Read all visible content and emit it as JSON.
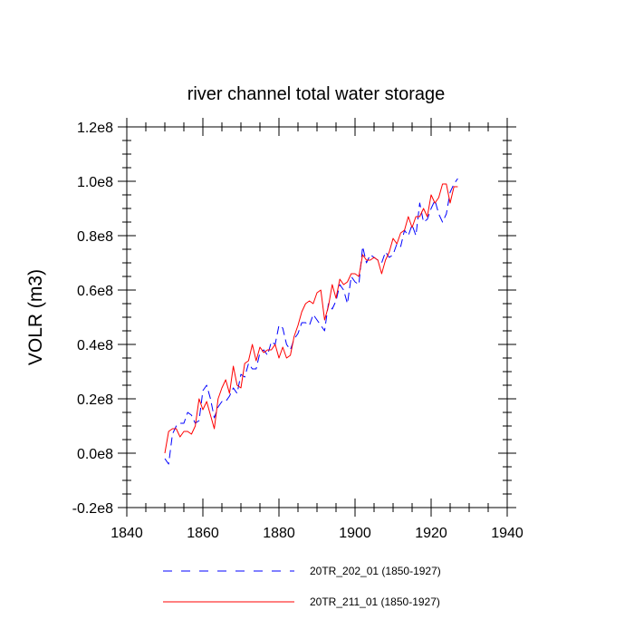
{
  "chart_data": {
    "type": "line",
    "title": "river channel total water storage",
    "ylabel": "VOLR  (m3)",
    "xlabel": "",
    "xlim": [
      1840,
      1940
    ],
    "ylim": [
      -0.2,
      1.2
    ],
    "y_unit": "1e8 m3",
    "x_ticks": [
      1840,
      1860,
      1880,
      1900,
      1920,
      1940
    ],
    "x_tick_labels": [
      "1840",
      "1860",
      "1880",
      "1900",
      "1920",
      "1940"
    ],
    "y_ticks": [
      -0.2,
      0.0,
      0.2,
      0.4,
      0.6,
      0.8,
      1.0,
      1.2
    ],
    "y_tick_labels": [
      "-0.2e8",
      "0.0e8",
      "0.2e8",
      "0.4e8",
      "0.6e8",
      "0.8e8",
      "1.0e8",
      "1.2e8"
    ],
    "grid": false,
    "legend_position": "bottom",
    "series": [
      {
        "name": "20TR_202_01 (1850-1927)",
        "color": "#0000ff",
        "style": "dashed",
        "x": [
          1850,
          1851,
          1852,
          1853,
          1854,
          1855,
          1856,
          1857,
          1858,
          1859,
          1860,
          1861,
          1862,
          1863,
          1864,
          1865,
          1866,
          1867,
          1868,
          1869,
          1870,
          1871,
          1872,
          1873,
          1874,
          1875,
          1876,
          1877,
          1878,
          1879,
          1880,
          1881,
          1882,
          1883,
          1884,
          1885,
          1886,
          1887,
          1888,
          1889,
          1890,
          1891,
          1892,
          1893,
          1894,
          1895,
          1896,
          1897,
          1898,
          1899,
          1900,
          1901,
          1902,
          1903,
          1904,
          1905,
          1906,
          1907,
          1908,
          1909,
          1910,
          1911,
          1912,
          1913,
          1914,
          1915,
          1916,
          1917,
          1918,
          1919,
          1920,
          1921,
          1922,
          1923,
          1924,
          1925,
          1926,
          1927
        ],
        "values": [
          -0.02,
          -0.04,
          0.07,
          0.1,
          0.11,
          0.11,
          0.15,
          0.14,
          0.11,
          0.12,
          0.23,
          0.25,
          0.2,
          0.13,
          0.17,
          0.19,
          0.19,
          0.21,
          0.24,
          0.22,
          0.29,
          0.28,
          0.33,
          0.31,
          0.31,
          0.37,
          0.38,
          0.36,
          0.41,
          0.4,
          0.47,
          0.46,
          0.4,
          0.38,
          0.42,
          0.44,
          0.48,
          0.48,
          0.47,
          0.51,
          0.49,
          0.47,
          0.45,
          0.55,
          0.53,
          0.56,
          0.62,
          0.6,
          0.55,
          0.65,
          0.63,
          0.62,
          0.76,
          0.7,
          0.73,
          0.72,
          0.71,
          0.7,
          0.74,
          0.72,
          0.73,
          0.77,
          0.76,
          0.82,
          0.8,
          0.84,
          0.8,
          0.92,
          0.85,
          0.86,
          0.9,
          0.93,
          0.88,
          0.85,
          0.88,
          0.96,
          0.99,
          1.01
        ]
      },
      {
        "name": "20TR_211_01 (1850-1927)",
        "color": "#ff0000",
        "style": "solid",
        "x": [
          1850,
          1851,
          1852,
          1853,
          1854,
          1855,
          1856,
          1857,
          1858,
          1859,
          1860,
          1861,
          1862,
          1863,
          1864,
          1865,
          1866,
          1867,
          1868,
          1869,
          1870,
          1871,
          1872,
          1873,
          1874,
          1875,
          1876,
          1877,
          1878,
          1879,
          1880,
          1881,
          1882,
          1883,
          1884,
          1885,
          1886,
          1887,
          1888,
          1889,
          1890,
          1891,
          1892,
          1893,
          1894,
          1895,
          1896,
          1897,
          1898,
          1899,
          1900,
          1901,
          1902,
          1903,
          1904,
          1905,
          1906,
          1907,
          1908,
          1909,
          1910,
          1911,
          1912,
          1913,
          1914,
          1915,
          1916,
          1917,
          1918,
          1919,
          1920,
          1921,
          1922,
          1923,
          1924,
          1925,
          1926,
          1927
        ],
        "values": [
          0.0,
          0.08,
          0.09,
          0.09,
          0.06,
          0.08,
          0.08,
          0.07,
          0.1,
          0.2,
          0.16,
          0.19,
          0.14,
          0.09,
          0.2,
          0.24,
          0.27,
          0.22,
          0.32,
          0.25,
          0.24,
          0.33,
          0.34,
          0.4,
          0.34,
          0.39,
          0.37,
          0.38,
          0.38,
          0.4,
          0.35,
          0.39,
          0.35,
          0.36,
          0.43,
          0.47,
          0.52,
          0.55,
          0.56,
          0.55,
          0.59,
          0.6,
          0.49,
          0.54,
          0.62,
          0.57,
          0.64,
          0.62,
          0.63,
          0.66,
          0.66,
          0.65,
          0.73,
          0.71,
          0.71,
          0.72,
          0.71,
          0.66,
          0.71,
          0.74,
          0.79,
          0.77,
          0.81,
          0.82,
          0.87,
          0.83,
          0.87,
          0.87,
          0.9,
          0.87,
          0.95,
          0.92,
          0.94,
          0.99,
          0.99,
          0.92,
          0.98,
          0.98
        ]
      }
    ]
  }
}
